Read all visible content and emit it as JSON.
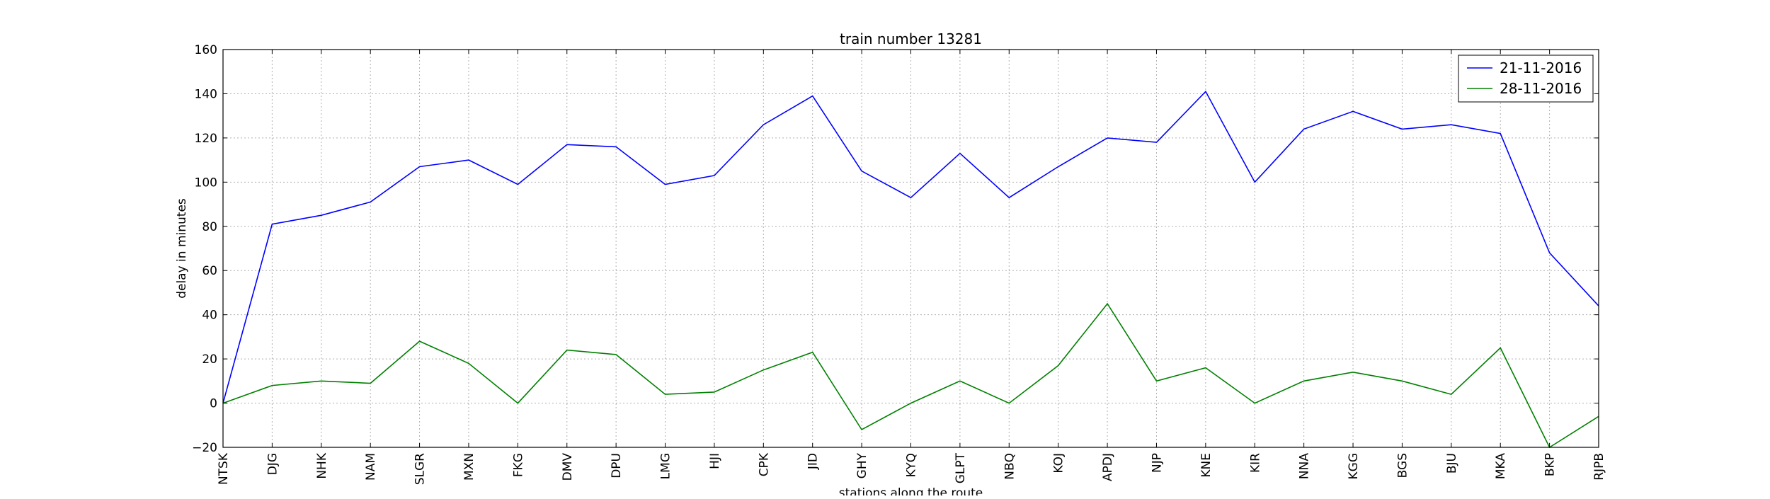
{
  "chart_data": {
    "type": "line",
    "title": "train number 13281",
    "xlabel": "stations along the route",
    "ylabel": "delay in minutes",
    "ylim": [
      -20,
      160
    ],
    "yticks": [
      -20,
      0,
      20,
      40,
      60,
      80,
      100,
      120,
      140,
      160
    ],
    "grid": true,
    "legend_position": "top-right",
    "categories": [
      "NTSK",
      "DJG",
      "NHK",
      "NAM",
      "SLGR",
      "MXN",
      "FKG",
      "DMV",
      "DPU",
      "LMG",
      "HJI",
      "CPK",
      "JID",
      "GHY",
      "KYQ",
      "GLPT",
      "NBQ",
      "KOJ",
      "APDJ",
      "NJP",
      "KNE",
      "KIR",
      "NNA",
      "KGG",
      "BGS",
      "BJU",
      "MKA",
      "BKP",
      "RJPB"
    ],
    "series": [
      {
        "name": "21-11-2016",
        "color": "#0000ff",
        "values": [
          0,
          81,
          85,
          91,
          107,
          110,
          99,
          117,
          116,
          99,
          103,
          126,
          139,
          105,
          93,
          113,
          93,
          107,
          120,
          118,
          141,
          100,
          124,
          132,
          124,
          126,
          122,
          68,
          44
        ]
      },
      {
        "name": "28-11-2016",
        "color": "#008000",
        "values": [
          0,
          8,
          10,
          9,
          28,
          18,
          0,
          24,
          22,
          4,
          5,
          15,
          23,
          -12,
          0,
          10,
          0,
          17,
          45,
          10,
          16,
          0,
          10,
          14,
          10,
          4,
          25,
          -20,
          -6
        ]
      }
    ]
  }
}
